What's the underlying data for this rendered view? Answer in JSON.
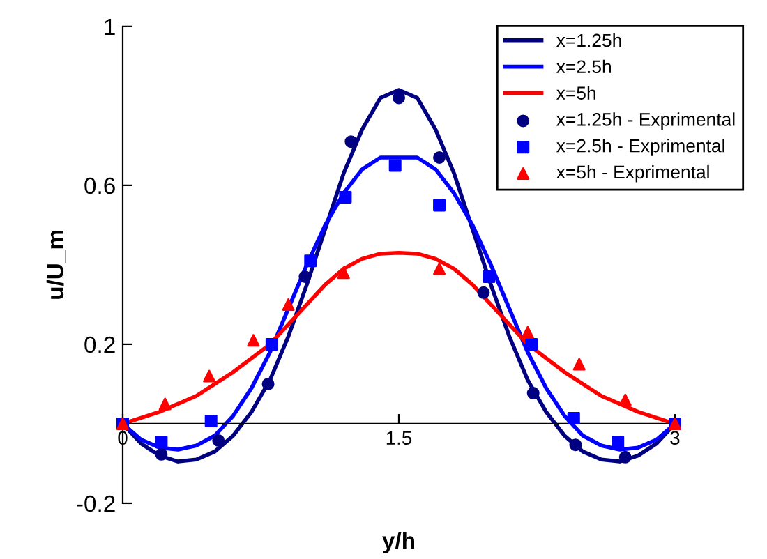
{
  "chart_data": {
    "type": "line",
    "xlabel": "y/h",
    "ylabel": "u/U_m",
    "xlim": [
      0,
      3
    ],
    "ylim": [
      -0.2,
      1
    ],
    "xticks": [
      0,
      1.5,
      3
    ],
    "yticks": [
      -0.2,
      0.2,
      0.6,
      1
    ],
    "grid": false,
    "legend": "top right",
    "line_style": "solid",
    "series": [
      {
        "name": "x=1.25h",
        "color": "#000080",
        "marker": "none",
        "x": [
          0,
          0.1,
          0.2,
          0.3,
          0.4,
          0.5,
          0.6,
          0.7,
          0.8,
          0.9,
          1.0,
          1.1,
          1.2,
          1.3,
          1.4,
          1.5,
          1.6,
          1.7,
          1.8,
          1.9,
          2.0,
          2.1,
          2.2,
          2.3,
          2.4,
          2.5,
          2.6,
          2.7,
          2.8,
          2.9,
          3.0
        ],
        "values": [
          0,
          -0.05,
          -0.08,
          -0.095,
          -0.09,
          -0.07,
          -0.03,
          0.03,
          0.11,
          0.22,
          0.35,
          0.49,
          0.63,
          0.74,
          0.82,
          0.84,
          0.82,
          0.74,
          0.63,
          0.49,
          0.35,
          0.22,
          0.11,
          0.03,
          -0.03,
          -0.07,
          -0.09,
          -0.095,
          -0.08,
          -0.05,
          0
        ]
      },
      {
        "name": "x=2.5h",
        "color": "#0000ff",
        "marker": "none",
        "x": [
          0,
          0.1,
          0.2,
          0.3,
          0.4,
          0.5,
          0.6,
          0.7,
          0.8,
          0.9,
          1.0,
          1.1,
          1.2,
          1.3,
          1.4,
          1.5,
          1.6,
          1.7,
          1.8,
          1.9,
          2.0,
          2.1,
          2.2,
          2.3,
          2.4,
          2.5,
          2.6,
          2.7,
          2.8,
          2.9,
          3.0
        ],
        "values": [
          0,
          -0.04,
          -0.06,
          -0.065,
          -0.055,
          -0.03,
          0.02,
          0.09,
          0.18,
          0.29,
          0.4,
          0.5,
          0.58,
          0.64,
          0.67,
          0.67,
          0.67,
          0.64,
          0.58,
          0.5,
          0.4,
          0.29,
          0.18,
          0.09,
          0.02,
          -0.03,
          -0.055,
          -0.065,
          -0.06,
          -0.04,
          0
        ]
      },
      {
        "name": "x=5h",
        "color": "#ff0000",
        "marker": "none",
        "x": [
          0,
          0.2,
          0.4,
          0.6,
          0.8,
          0.9,
          1.0,
          1.1,
          1.2,
          1.3,
          1.4,
          1.5,
          1.6,
          1.7,
          1.8,
          1.9,
          2.0,
          2.1,
          2.2,
          2.4,
          2.6,
          2.8,
          3.0
        ],
        "values": [
          0,
          0.03,
          0.07,
          0.13,
          0.2,
          0.25,
          0.3,
          0.35,
          0.39,
          0.415,
          0.428,
          0.43,
          0.428,
          0.415,
          0.39,
          0.35,
          0.3,
          0.25,
          0.2,
          0.13,
          0.07,
          0.03,
          0
        ]
      },
      {
        "name": "x=1.25h - Exprimental",
        "type": "scatter",
        "color": "#000080",
        "marker": "circle",
        "x": [
          0.21,
          0.52,
          0.79,
          0.99,
          1.24,
          1.5,
          1.72,
          1.96,
          2.23,
          2.46,
          2.73
        ],
        "values": [
          -0.077,
          -0.042,
          0.1,
          0.37,
          0.71,
          0.82,
          0.67,
          0.33,
          0.077,
          -0.053,
          -0.084
        ]
      },
      {
        "name": "x=2.5h - Exprimental",
        "type": "scatter",
        "color": "#0000ff",
        "marker": "square",
        "x": [
          0,
          0.21,
          0.48,
          0.81,
          1.02,
          1.21,
          1.48,
          1.72,
          1.99,
          2.22,
          2.45,
          2.69,
          3
        ],
        "values": [
          0,
          -0.046,
          0.007,
          0.2,
          0.41,
          0.57,
          0.65,
          0.55,
          0.37,
          0.2,
          0.014,
          -0.046,
          0
        ]
      },
      {
        "name": "x=5h - Exprimental",
        "type": "scatter",
        "color": "#ff0000",
        "marker": "triangle",
        "x": [
          0,
          0.23,
          0.47,
          0.71,
          0.9,
          1.2,
          1.72,
          2.2,
          2.48,
          2.73,
          3
        ],
        "values": [
          0,
          0.05,
          0.12,
          0.21,
          0.3,
          0.38,
          0.39,
          0.23,
          0.15,
          0.06,
          0
        ]
      }
    ]
  }
}
